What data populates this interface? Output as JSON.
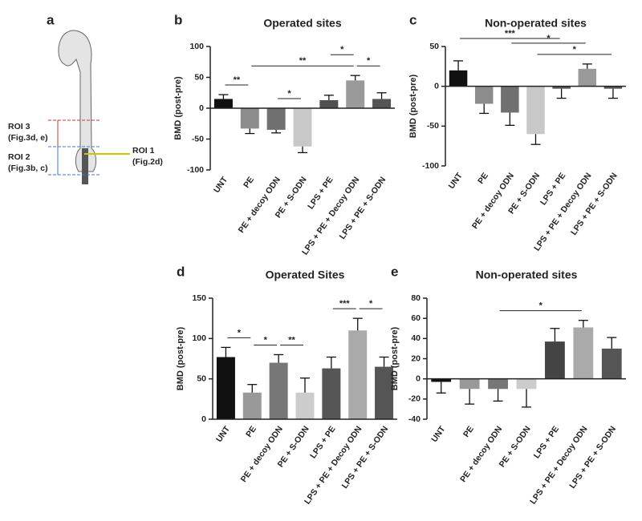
{
  "panel_a": {
    "label": "a",
    "rois": [
      {
        "name": "ROI 3",
        "ref": "(Fig.3d, e)"
      },
      {
        "name": "ROI 2",
        "ref": "(Fig.3b, c)"
      },
      {
        "name": "ROI 1",
        "ref": "(Fig.2d)"
      }
    ]
  },
  "chart_data": [
    {
      "type": "bar",
      "panel": "b",
      "title": "Operated sites",
      "y_label": "BMD (post-pre)",
      "categories": [
        "UNT",
        "PE",
        "PE + decoy ODN",
        "PE + S-ODN",
        "LPS + PE",
        "LPS + PE + Decoy ODN",
        "LPS + PE + S-ODN"
      ],
      "values": [
        15,
        -33,
        -35,
        -62,
        13,
        45,
        15
      ],
      "errors": [
        7,
        8,
        5,
        10,
        8,
        8,
        10
      ],
      "colors": [
        "#111111",
        "#8c8c8c",
        "#707070",
        "#c8c8c8",
        "#505050",
        "#9a9a9a",
        "#555555"
      ],
      "ylim": [
        -100,
        100
      ],
      "yticks": [
        -100,
        -50,
        0,
        50,
        100
      ],
      "annotations": [
        {
          "text": "**",
          "from": "UNT",
          "to": "PE"
        },
        {
          "text": "*",
          "from": "PE + decoy ODN",
          "to": "PE + S-ODN"
        },
        {
          "text": "**",
          "from": "PE",
          "to": "LPS + PE + Decoy ODN"
        },
        {
          "text": "*",
          "from": "LPS + PE",
          "to": "LPS + PE + Decoy ODN"
        },
        {
          "text": "*",
          "from": "LPS + PE + Decoy ODN",
          "to": "LPS + PE + S-ODN"
        }
      ]
    },
    {
      "type": "bar",
      "panel": "c",
      "title": "Non-operated sites",
      "y_label": "BMD (post-pre)",
      "categories": [
        "UNT",
        "PE",
        "PE + decoy ODN",
        "PE + S-ODN",
        "LPS + PE",
        "LPS + PE + Decoy ODN",
        "LPS + PE + S-ODN"
      ],
      "values": [
        20,
        -22,
        -33,
        -60,
        -3,
        22,
        -3
      ],
      "errors": [
        12,
        12,
        16,
        13,
        12,
        6,
        12
      ],
      "colors": [
        "#111111",
        "#8c8c8c",
        "#707070",
        "#c8c8c8",
        "#555555",
        "#9a9a9a",
        "#555555"
      ],
      "ylim": [
        -100,
        50
      ],
      "yticks": [
        -100,
        -50,
        0,
        50
      ],
      "annotations": [
        {
          "text": "*",
          "from": "PE + S-ODN",
          "to": "LPS + PE + S-ODN"
        },
        {
          "text": "*",
          "from": "PE + decoy ODN",
          "to": "LPS + PE + Decoy ODN"
        },
        {
          "text": "***",
          "from": "UNT",
          "to": "LPS + PE"
        }
      ]
    },
    {
      "type": "bar",
      "panel": "d",
      "title": "Operated Sites",
      "y_label": "BMD (post-pre)",
      "categories": [
        "UNT",
        "PE",
        "PE + decoy ODN",
        "PE + S-ODN",
        "LPS + PE",
        "LPS + PE + Decoy ODN",
        "LPS + PE + S-ODN"
      ],
      "values": [
        77,
        33,
        70,
        33,
        63,
        110,
        65
      ],
      "errors": [
        12,
        10,
        10,
        18,
        14,
        15,
        12
      ],
      "colors": [
        "#111111",
        "#999999",
        "#777777",
        "#cccccc",
        "#555555",
        "#aaaaaa",
        "#555555"
      ],
      "ylim": [
        0,
        150
      ],
      "yticks": [
        0,
        50,
        100,
        150
      ],
      "annotations": [
        {
          "text": "*",
          "from": "UNT",
          "to": "PE"
        },
        {
          "text": "*",
          "from": "PE",
          "to": "PE + decoy ODN"
        },
        {
          "text": "**",
          "from": "PE + decoy ODN",
          "to": "PE + S-ODN"
        },
        {
          "text": "***",
          "from": "LPS + PE",
          "to": "LPS + PE + Decoy ODN"
        },
        {
          "text": "*",
          "from": "LPS + PE + Decoy ODN",
          "to": "LPS + PE + S-ODN"
        }
      ]
    },
    {
      "type": "bar",
      "panel": "e",
      "title": "Non-operated sites",
      "y_label": "BMD (post-pre)",
      "categories": [
        "UNT",
        "PE",
        "PE + decoy ODN",
        "PE + S-ODN",
        "LPS + PE",
        "LPS + PE + Decoy ODN",
        "LPS + PE + S-ODN"
      ],
      "values": [
        -3,
        -10,
        -10,
        -10,
        37,
        51,
        30
      ],
      "errors": [
        11,
        15,
        12,
        18,
        13,
        7,
        11
      ],
      "colors": [
        "#111111",
        "#999999",
        "#777777",
        "#cccccc",
        "#444444",
        "#aaaaaa",
        "#555555"
      ],
      "ylim": [
        -40,
        80
      ],
      "yticks": [
        -40,
        -20,
        0,
        20,
        40,
        60,
        80
      ],
      "annotations": [
        {
          "text": "*",
          "from": "PE + decoy ODN",
          "to": "LPS + PE + Decoy ODN"
        }
      ]
    }
  ]
}
